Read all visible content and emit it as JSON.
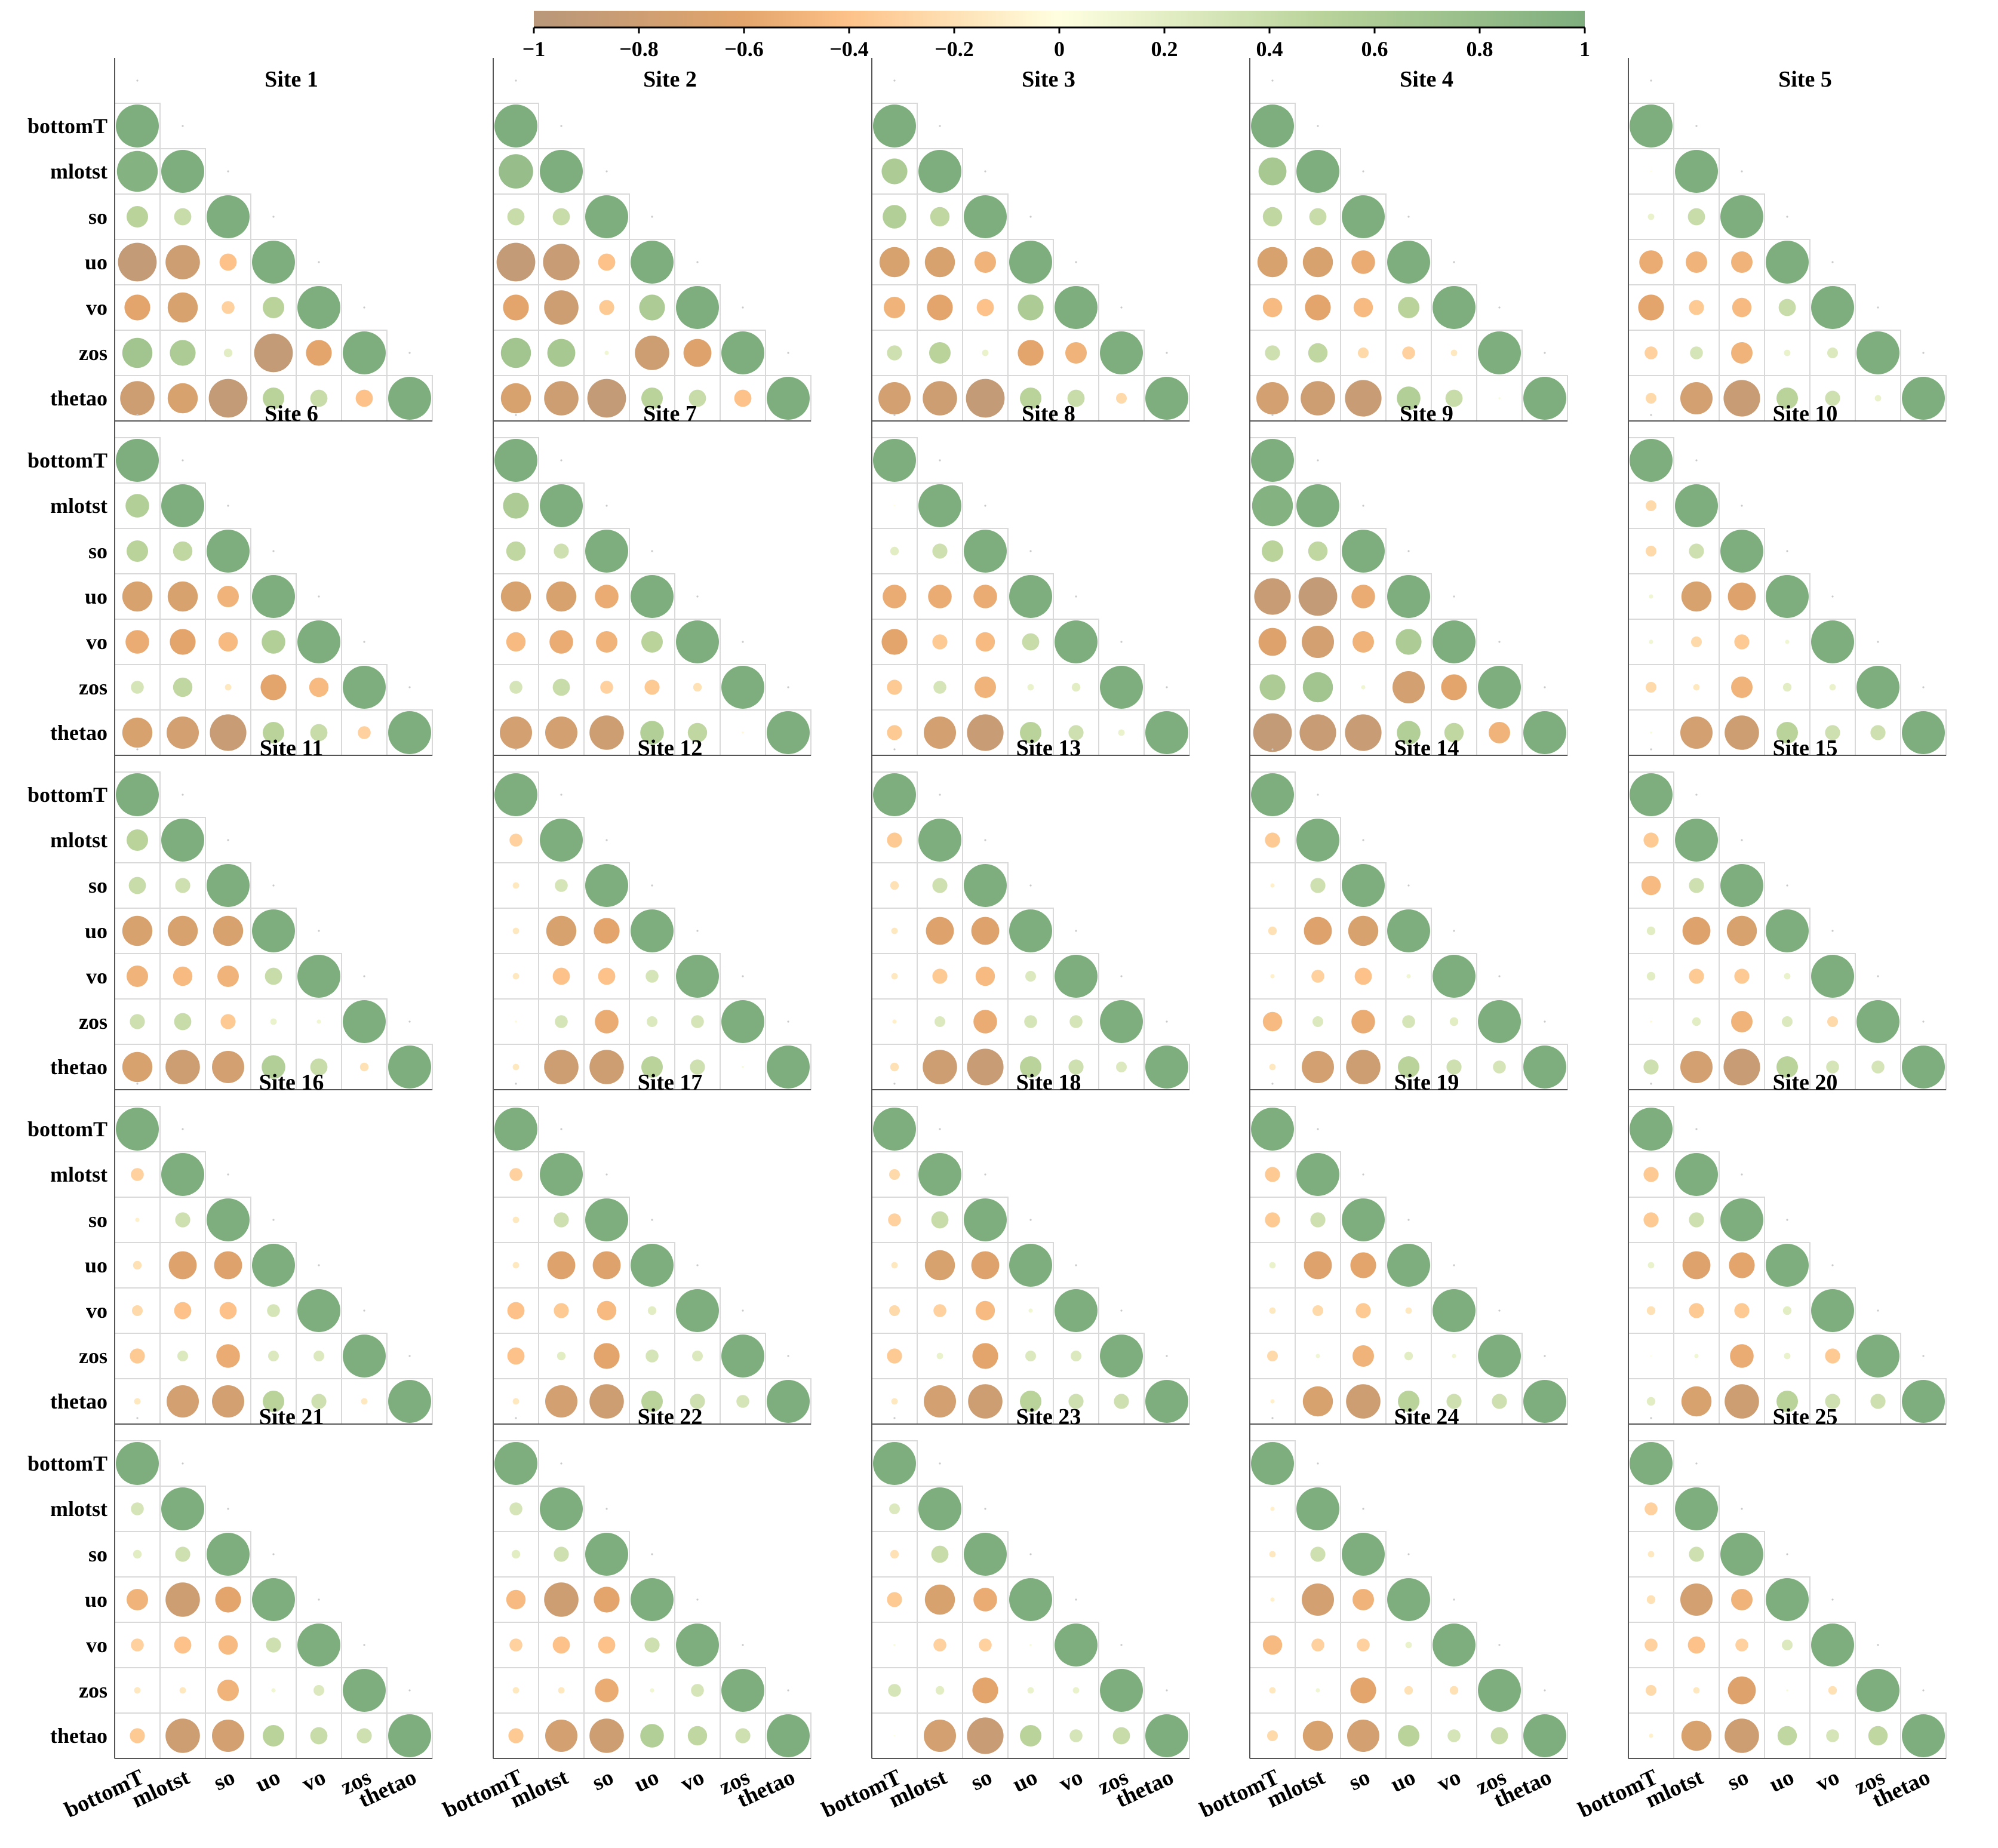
{
  "chart_data": {
    "type": "correlation-matrix",
    "title": "",
    "variables": [
      "bottomT",
      "mlotst",
      "so",
      "uo",
      "vo",
      "zos",
      "thetao"
    ],
    "colorbar": {
      "range": [
        -1,
        1
      ],
      "ticks": [
        "−1",
        "−0.8",
        "−0.6",
        "−0.4",
        "−0.2",
        "0",
        "0.2",
        "0.4",
        "0.6",
        "0.8",
        "1"
      ],
      "colors": {
        "neg_1": "#b8977a",
        "neg_0_6": "#e3a56b",
        "neg_0_4": "#fdc289",
        "zero": "#ffffe0",
        "pos_0_5": "#b9d39b",
        "pos_1": "#7fae7e"
      }
    },
    "lower_triangle_order": "rows mlotst..thetao; r(mlotst,bottomT); r(so,bottomT), r(so,mlotst); r(uo,bottomT..so); r(vo,bottomT..uo); r(zos,bottomT..vo); r(thetao,bottomT..zos)",
    "panels": [
      {
        "title": "Site 1",
        "lower": [
          0.95,
          0.5,
          0.4,
          -0.9,
          -0.8,
          -0.4,
          -0.6,
          -0.7,
          -0.3,
          0.5,
          0.7,
          0.6,
          0.2,
          -0.9,
          -0.6,
          -0.8,
          -0.7,
          -0.9,
          0.5,
          0.4,
          -0.4
        ]
      },
      {
        "title": "Site 2",
        "lower": [
          0.8,
          0.4,
          0.4,
          -0.9,
          -0.85,
          -0.4,
          -0.6,
          -0.8,
          -0.35,
          0.6,
          0.7,
          0.65,
          0.1,
          -0.8,
          -0.65,
          -0.7,
          -0.8,
          -0.9,
          0.5,
          0.4,
          -0.4
        ]
      },
      {
        "title": "Site 3",
        "lower": [
          0.6,
          0.55,
          0.45,
          -0.7,
          -0.7,
          -0.5,
          -0.5,
          -0.6,
          -0.4,
          0.6,
          0.35,
          0.5,
          0.15,
          -0.6,
          -0.5,
          -0.75,
          -0.8,
          -0.9,
          0.5,
          0.4,
          -0.25
        ]
      },
      {
        "title": "Site 4",
        "lower": [
          0.65,
          0.45,
          0.4,
          -0.7,
          -0.7,
          -0.55,
          -0.45,
          -0.6,
          -0.45,
          0.5,
          0.35,
          0.45,
          -0.25,
          -0.3,
          -0.15,
          -0.75,
          -0.8,
          -0.85,
          0.55,
          0.4,
          0.05
        ]
      },
      {
        "title": "Site 5",
        "lower": [
          0.0,
          0.15,
          0.4,
          -0.55,
          -0.5,
          -0.5,
          -0.6,
          -0.35,
          -0.45,
          0.4,
          -0.3,
          0.3,
          -0.5,
          0.15,
          0.25,
          -0.25,
          -0.75,
          -0.85,
          0.5,
          0.35,
          0.15
        ]
      },
      {
        "title": "Site 6",
        "lower": [
          0.55,
          0.5,
          0.45,
          -0.7,
          -0.7,
          -0.5,
          -0.55,
          -0.6,
          -0.45,
          0.55,
          0.3,
          0.45,
          -0.15,
          -0.6,
          -0.45,
          -0.7,
          -0.75,
          -0.85,
          0.5,
          0.4,
          -0.3
        ]
      },
      {
        "title": "Site 7",
        "lower": [
          0.6,
          0.45,
          0.35,
          -0.7,
          -0.7,
          -0.55,
          -0.45,
          -0.55,
          -0.5,
          0.5,
          0.3,
          0.4,
          -0.3,
          -0.35,
          -0.2,
          -0.75,
          -0.75,
          -0.8,
          0.55,
          0.45,
          -0.05
        ]
      },
      {
        "title": "Site 8",
        "lower": [
          0.0,
          0.2,
          0.35,
          -0.55,
          -0.55,
          -0.55,
          -0.6,
          -0.35,
          -0.45,
          0.4,
          -0.35,
          0.3,
          -0.5,
          0.15,
          0.2,
          -0.35,
          -0.75,
          -0.85,
          0.5,
          0.35,
          0.15
        ]
      },
      {
        "title": "Site 9",
        "lower": [
          0.95,
          0.5,
          0.45,
          -0.85,
          -0.9,
          -0.55,
          -0.65,
          -0.75,
          -0.5,
          0.6,
          0.6,
          0.7,
          0.1,
          -0.75,
          -0.6,
          -0.9,
          -0.85,
          -0.85,
          0.55,
          0.45,
          -0.5
        ]
      },
      {
        "title": "Site 10",
        "lower": [
          -0.25,
          -0.25,
          0.35,
          0.1,
          -0.7,
          -0.65,
          0.1,
          -0.25,
          -0.35,
          0.1,
          -0.25,
          -0.15,
          -0.5,
          0.2,
          0.15,
          0.05,
          -0.75,
          -0.8,
          0.5,
          0.35,
          0.35
        ]
      },
      {
        "title": "Site 11",
        "lower": [
          0.5,
          0.4,
          0.35,
          -0.7,
          -0.7,
          -0.7,
          -0.5,
          -0.45,
          -0.5,
          0.4,
          0.35,
          0.4,
          -0.35,
          0.15,
          0.1,
          -0.7,
          -0.8,
          -0.75,
          0.55,
          0.4,
          -0.2
        ]
      },
      {
        "title": "Site 12",
        "lower": [
          -0.3,
          -0.15,
          0.3,
          -0.15,
          -0.7,
          -0.6,
          -0.15,
          -0.4,
          -0.4,
          0.3,
          -0.05,
          0.3,
          -0.55,
          0.25,
          0.3,
          -0.15,
          -0.8,
          -0.8,
          0.5,
          0.35,
          0.05
        ]
      },
      {
        "title": "Site 13",
        "lower": [
          -0.35,
          -0.2,
          0.35,
          -0.15,
          -0.65,
          -0.65,
          -0.15,
          -0.35,
          -0.45,
          0.25,
          -0.1,
          0.25,
          -0.55,
          0.3,
          0.3,
          -0.2,
          -0.8,
          -0.85,
          0.5,
          0.35,
          0.25
        ]
      },
      {
        "title": "Site 14",
        "lower": [
          -0.35,
          -0.1,
          0.35,
          -0.2,
          -0.65,
          -0.7,
          -0.1,
          -0.3,
          -0.4,
          0.1,
          -0.45,
          0.25,
          -0.55,
          0.3,
          0.2,
          -0.15,
          -0.75,
          -0.8,
          0.5,
          0.35,
          0.3
        ]
      },
      {
        "title": "Site 15",
        "lower": [
          -0.35,
          -0.45,
          0.35,
          0.2,
          -0.65,
          -0.7,
          0.2,
          -0.35,
          -0.35,
          0.15,
          -0.05,
          0.2,
          -0.5,
          0.25,
          -0.25,
          0.35,
          -0.75,
          -0.85,
          0.5,
          0.3,
          0.3
        ]
      },
      {
        "title": "Site 16",
        "lower": [
          -0.3,
          -0.1,
          0.35,
          -0.2,
          -0.65,
          -0.65,
          -0.25,
          -0.4,
          -0.4,
          0.3,
          -0.35,
          0.25,
          -0.55,
          0.25,
          0.25,
          -0.15,
          -0.75,
          -0.75,
          0.5,
          0.35,
          -0.15
        ]
      },
      {
        "title": "Site 17",
        "lower": [
          -0.3,
          -0.15,
          0.35,
          -0.15,
          -0.65,
          -0.65,
          -0.4,
          -0.35,
          -0.45,
          0.2,
          -0.4,
          0.2,
          -0.6,
          0.3,
          0.25,
          -0.15,
          -0.75,
          -0.8,
          0.5,
          0.35,
          0.3
        ]
      },
      {
        "title": "Site 18",
        "lower": [
          -0.25,
          -0.3,
          0.4,
          -0.15,
          -0.7,
          -0.65,
          -0.25,
          -0.3,
          -0.45,
          0.1,
          -0.35,
          0.15,
          -0.6,
          0.25,
          0.25,
          -0.15,
          -0.75,
          -0.8,
          0.5,
          0.35,
          0.35
        ]
      },
      {
        "title": "Site 19",
        "lower": [
          -0.35,
          -0.35,
          0.35,
          0.15,
          -0.65,
          -0.6,
          -0.15,
          -0.25,
          -0.35,
          -0.15,
          -0.25,
          0.1,
          -0.5,
          0.2,
          0.1,
          -0.1,
          -0.7,
          -0.8,
          0.5,
          0.35,
          0.35
        ]
      },
      {
        "title": "Site 20",
        "lower": [
          -0.35,
          -0.35,
          0.35,
          0.15,
          -0.65,
          -0.6,
          -0.2,
          -0.35,
          -0.35,
          0.2,
          0.0,
          0.1,
          -0.55,
          0.15,
          -0.35,
          0.2,
          -0.7,
          -0.8,
          0.5,
          0.35,
          0.35
        ]
      },
      {
        "title": "Site 21",
        "lower": [
          0.3,
          0.2,
          0.35,
          -0.5,
          -0.8,
          -0.6,
          -0.3,
          -0.4,
          -0.45,
          0.35,
          -0.15,
          -0.15,
          -0.5,
          0.1,
          0.25,
          -0.35,
          -0.8,
          -0.75,
          0.5,
          0.4,
          0.35
        ]
      },
      {
        "title": "Site 22",
        "lower": [
          0.3,
          0.2,
          0.35,
          -0.45,
          -0.8,
          -0.6,
          -0.3,
          -0.4,
          -0.4,
          0.35,
          -0.15,
          -0.15,
          -0.55,
          0.1,
          0.3,
          -0.35,
          -0.75,
          -0.8,
          0.55,
          0.45,
          0.35
        ]
      },
      {
        "title": "Site 23",
        "lower": [
          0.25,
          -0.2,
          0.4,
          -0.35,
          -0.7,
          -0.55,
          0.05,
          -0.3,
          -0.3,
          0.05,
          0.3,
          0.2,
          -0.6,
          0.15,
          0.15,
          0.0,
          -0.75,
          -0.85,
          0.5,
          0.3,
          0.4
        ]
      },
      {
        "title": "Site 24",
        "lower": [
          -0.1,
          -0.15,
          0.35,
          -0.1,
          -0.75,
          -0.5,
          -0.45,
          -0.3,
          -0.3,
          0.15,
          -0.15,
          0.1,
          -0.6,
          -0.2,
          -0.2,
          -0.25,
          -0.7,
          -0.75,
          0.5,
          0.3,
          0.4
        ]
      },
      {
        "title": "Site 25",
        "lower": [
          -0.3,
          -0.15,
          0.35,
          -0.2,
          -0.75,
          -0.5,
          -0.3,
          -0.4,
          -0.3,
          0.25,
          -0.25,
          -0.15,
          -0.65,
          0.05,
          -0.2,
          -0.1,
          -0.7,
          -0.8,
          0.45,
          0.3,
          0.45
        ]
      }
    ]
  }
}
